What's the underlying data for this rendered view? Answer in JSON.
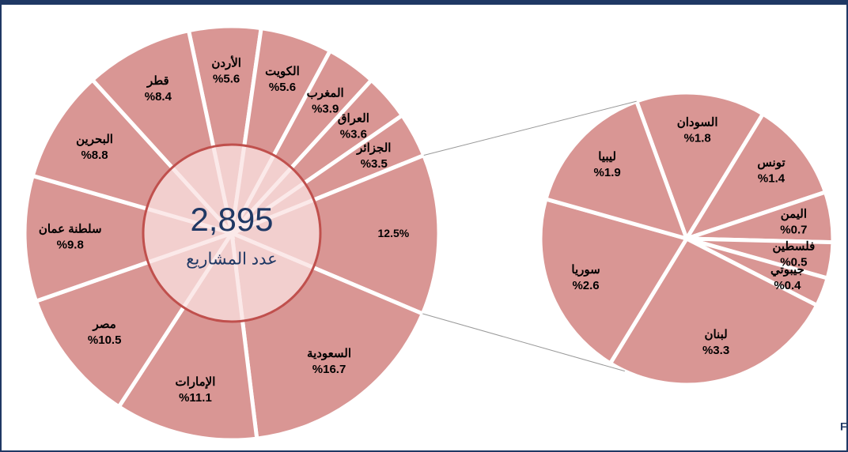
{
  "chart_data": [
    {
      "type": "pie",
      "categories": [
        "الأردن",
        "الكويت",
        "المغرب",
        "العراق",
        "الجزائر",
        null,
        "السعودية",
        "الإمارات",
        "مصر",
        "سلطنة عمان",
        "البحرين",
        "قطر"
      ],
      "values": [
        5.6,
        5.6,
        3.9,
        3.6,
        3.5,
        12.5,
        16.7,
        11.1,
        10.5,
        9.8,
        8.8,
        8.4
      ],
      "value_labels": [
        "%5.6",
        "%5.6",
        "%3.9",
        "%3.6",
        "%3.5",
        "12.5%",
        "%16.7",
        "%11.1",
        "%10.5",
        "%9.8",
        "%8.8",
        "%8.4"
      ],
      "color": "#d99694",
      "center_value": {
        "value": 2895,
        "label": "2,895"
      },
      "center_label": "عدد المشاريع"
    },
    {
      "type": "pie",
      "categories": [
        "السودان",
        "تونس",
        "اليمن",
        "فلسطين",
        "جيبوتي",
        "لبنان",
        "سوريا",
        "ليبيا"
      ],
      "values": [
        1.8,
        1.4,
        0.7,
        0.5,
        0.4,
        3.3,
        2.6,
        1.9
      ],
      "value_labels": [
        "%1.8",
        "%1.4",
        "%0.7",
        "%0.5",
        "%0.4",
        "%3.3",
        "%2.6",
        "%1.9"
      ],
      "color": "#d99694"
    }
  ],
  "source": "المصدر : قاعدة بيانات FDI Markets"
}
